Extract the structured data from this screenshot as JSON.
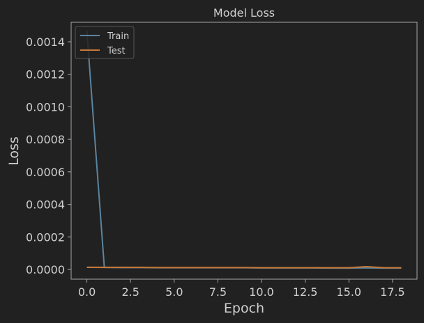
{
  "chart_data": {
    "type": "line",
    "title": "Model Loss",
    "xlabel": "Epoch",
    "ylabel": "Loss",
    "xlim": [
      -0.9,
      18.9
    ],
    "ylim": [
      -6e-05,
      0.00152
    ],
    "x_ticks": [
      0,
      2.5,
      5,
      7.5,
      10,
      12.5,
      15,
      17.5
    ],
    "x_tick_labels": [
      "0.0",
      "2.5",
      "5.0",
      "7.5",
      "10.0",
      "12.5",
      "15.0",
      "17.5"
    ],
    "y_ticks": [
      0,
      0.0002,
      0.0004,
      0.0006,
      0.0008,
      0.001,
      0.0012,
      0.0014
    ],
    "y_tick_labels": [
      "0.0000",
      "0.0002",
      "0.0004",
      "0.0006",
      "0.0008",
      "0.0010",
      "0.0012",
      "0.0014"
    ],
    "grid": false,
    "legend_position": "top-left",
    "x": [
      0,
      1,
      2,
      3,
      4,
      5,
      6,
      7,
      8,
      9,
      10,
      11,
      12,
      13,
      14,
      15,
      16,
      17,
      18
    ],
    "series": [
      {
        "name": "Train",
        "color": "#5b84a0",
        "values": [
          0.00147,
          1.2e-05,
          1.1e-05,
          1.1e-05,
          1e-05,
          1e-05,
          1e-05,
          1e-05,
          1e-05,
          1e-05,
          9e-06,
          9e-06,
          9e-06,
          9e-06,
          8e-06,
          8e-06,
          9e-06,
          8e-06,
          8e-06
        ]
      },
      {
        "name": "Test",
        "color": "#c77a3a",
        "values": [
          1.3e-05,
          1.2e-05,
          1.2e-05,
          1.2e-05,
          1.1e-05,
          1.1e-05,
          1.1e-05,
          1.1e-05,
          1.1e-05,
          1.1e-05,
          1e-05,
          1e-05,
          1e-05,
          1e-05,
          1e-05,
          1e-05,
          1.7e-05,
          1e-05,
          1e-05
        ]
      }
    ]
  }
}
